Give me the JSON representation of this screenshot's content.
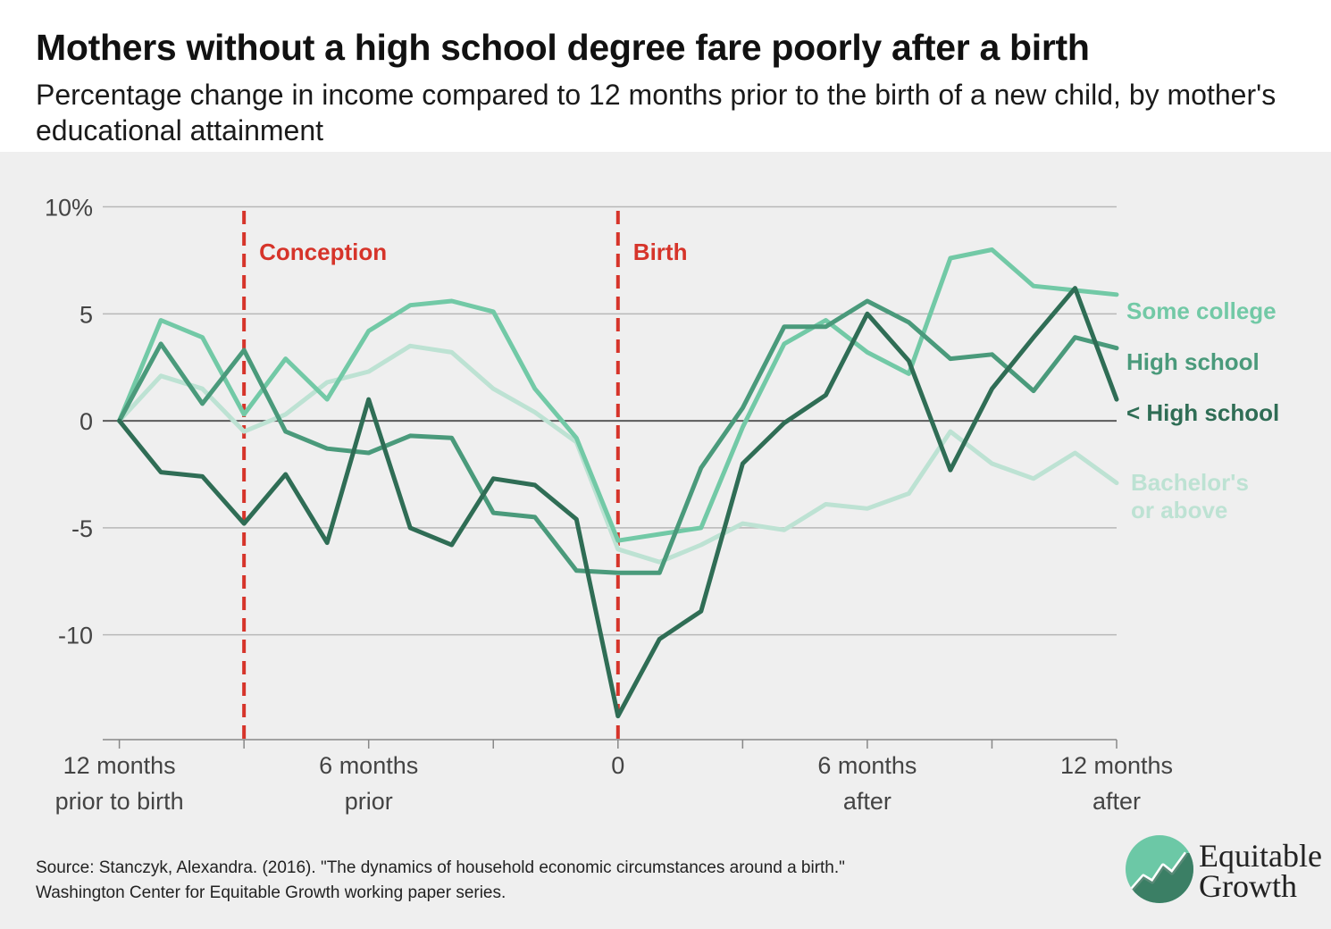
{
  "title": "Mothers without a high school degree fare poorly after a birth",
  "subtitle": "Percentage change in income compared to 12 months prior to the birth of a new child, by mother's educational attainment",
  "source_line1": "Source: Stanczyk, Alexandra. (2016). \"The dynamics of household economic circumstances around a birth.\"",
  "source_line2": "Washington Center for Equitable Growth working paper series.",
  "logo": {
    "line1": "Equitable",
    "line2": "Growth",
    "icon": "growth-chart-logo-icon"
  },
  "colors": {
    "some_college": "#72c9a6",
    "high_school": "#4a9a7b",
    "less_high_school": "#2f6d55",
    "bachelors": "#bde2d3",
    "event_line": "#d6342a",
    "grid": "#b8b8b8",
    "zero_line": "#5a5a5a"
  },
  "chart_data": {
    "type": "line",
    "title": "Mothers without a high school degree fare poorly after a birth",
    "subtitle": "Percentage change in income compared to 12 months prior to the birth of a new child, by mother's educational attainment",
    "xlabel": "",
    "ylabel": "",
    "x": [
      -12,
      -11,
      -10,
      -9,
      -8,
      -7,
      -6,
      -5,
      -4,
      -3,
      -2,
      -1,
      0,
      1,
      2,
      3,
      4,
      5,
      6,
      7,
      8,
      9,
      10,
      11,
      12
    ],
    "xlim": [
      -12.4,
      12
    ],
    "ylim": [
      -14.9,
      10.9
    ],
    "y_ticks": [
      10,
      5,
      0,
      -5,
      -10
    ],
    "y_tick_labels": [
      "10%",
      "5",
      "0",
      "-5",
      "-10"
    ],
    "x_ticks": [
      {
        "x": -12,
        "line1": "12 months",
        "line2": "prior to birth"
      },
      {
        "x": -6,
        "line1": "6 months",
        "line2": "prior"
      },
      {
        "x": 0,
        "line1": "0",
        "line2": ""
      },
      {
        "x": 6,
        "line1": "6 months",
        "line2": "after"
      },
      {
        "x": 12,
        "line1": "12 months",
        "line2": "after"
      }
    ],
    "x_minor_ticks": [
      -9,
      -3,
      3,
      9
    ],
    "grid": true,
    "events": [
      {
        "x": -9,
        "label": "Conception"
      },
      {
        "x": 0,
        "label": "Birth"
      }
    ],
    "series": [
      {
        "name": "Bachelor's or above",
        "label_lines": [
          "Bachelor's",
          "or above"
        ],
        "color": "#bde2d3",
        "values": [
          0,
          2.1,
          1.5,
          -0.5,
          0.3,
          1.8,
          2.3,
          3.5,
          3.2,
          1.5,
          0.4,
          -1.0,
          -6.0,
          -6.6,
          -5.8,
          -4.8,
          -5.1,
          -3.9,
          -4.1,
          -3.4,
          -0.5,
          -2.0,
          -2.7,
          -1.5,
          -2.9
        ]
      },
      {
        "name": "Some college",
        "label_lines": [
          "Some college"
        ],
        "color": "#72c9a6",
        "values": [
          0,
          4.7,
          3.9,
          0.3,
          2.9,
          1.0,
          4.2,
          5.4,
          5.6,
          5.1,
          1.5,
          -0.8,
          -5.6,
          -5.3,
          -5.0,
          -0.3,
          3.6,
          4.7,
          3.2,
          2.2,
          7.6,
          8.0,
          6.3,
          6.1,
          5.9
        ]
      },
      {
        "name": "High school",
        "label_lines": [
          "High school"
        ],
        "color": "#4a9a7b",
        "values": [
          0,
          3.6,
          0.8,
          3.3,
          -0.5,
          -1.3,
          -1.5,
          -0.7,
          -0.8,
          -4.3,
          -4.5,
          -7.0,
          -7.1,
          -7.1,
          -2.2,
          0.6,
          4.4,
          4.4,
          5.6,
          4.6,
          2.9,
          3.1,
          1.4,
          3.9,
          3.4
        ]
      },
      {
        "name": "< High school",
        "label_lines": [
          "< High school"
        ],
        "color": "#2f6d55",
        "values": [
          0,
          -2.4,
          -2.6,
          -4.8,
          -2.5,
          -5.7,
          1.0,
          -5.0,
          -5.8,
          -2.7,
          -3.0,
          -4.6,
          -13.8,
          -10.2,
          -8.9,
          -2.0,
          -0.1,
          1.2,
          5.0,
          2.8,
          -2.3,
          1.5,
          3.9,
          6.2,
          1.0
        ]
      }
    ]
  }
}
